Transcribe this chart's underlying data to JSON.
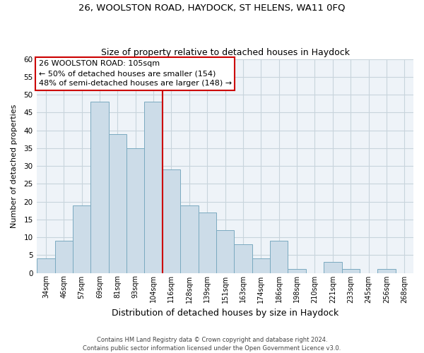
{
  "title1": "26, WOOLSTON ROAD, HAYDOCK, ST HELENS, WA11 0FQ",
  "title2": "Size of property relative to detached houses in Haydock",
  "xlabel": "Distribution of detached houses by size in Haydock",
  "ylabel": "Number of detached properties",
  "bin_labels": [
    "34sqm",
    "46sqm",
    "57sqm",
    "69sqm",
    "81sqm",
    "93sqm",
    "104sqm",
    "116sqm",
    "128sqm",
    "139sqm",
    "151sqm",
    "163sqm",
    "174sqm",
    "186sqm",
    "198sqm",
    "210sqm",
    "221sqm",
    "233sqm",
    "245sqm",
    "256sqm",
    "268sqm"
  ],
  "bar_values": [
    4,
    9,
    19,
    48,
    39,
    35,
    48,
    29,
    19,
    17,
    12,
    8,
    4,
    9,
    1,
    0,
    3,
    1,
    0,
    1,
    0
  ],
  "bar_color": "#ccdce8",
  "bar_edge_color": "#7aaac0",
  "vline_x": 6.5,
  "vline_color": "#cc0000",
  "annotation_text": "26 WOOLSTON ROAD: 105sqm\n← 50% of detached houses are smaller (154)\n48% of semi-detached houses are larger (148) →",
  "annotation_box_color": "#ffffff",
  "annotation_box_edge_color": "#cc0000",
  "ylim": [
    0,
    60
  ],
  "yticks": [
    0,
    5,
    10,
    15,
    20,
    25,
    30,
    35,
    40,
    45,
    50,
    55,
    60
  ],
  "footer": "Contains HM Land Registry data © Crown copyright and database right 2024.\nContains public sector information licensed under the Open Government Licence v3.0.",
  "bg_color": "#ffffff",
  "plot_bg_color": "#eef3f8",
  "grid_color": "#c8d4dc"
}
